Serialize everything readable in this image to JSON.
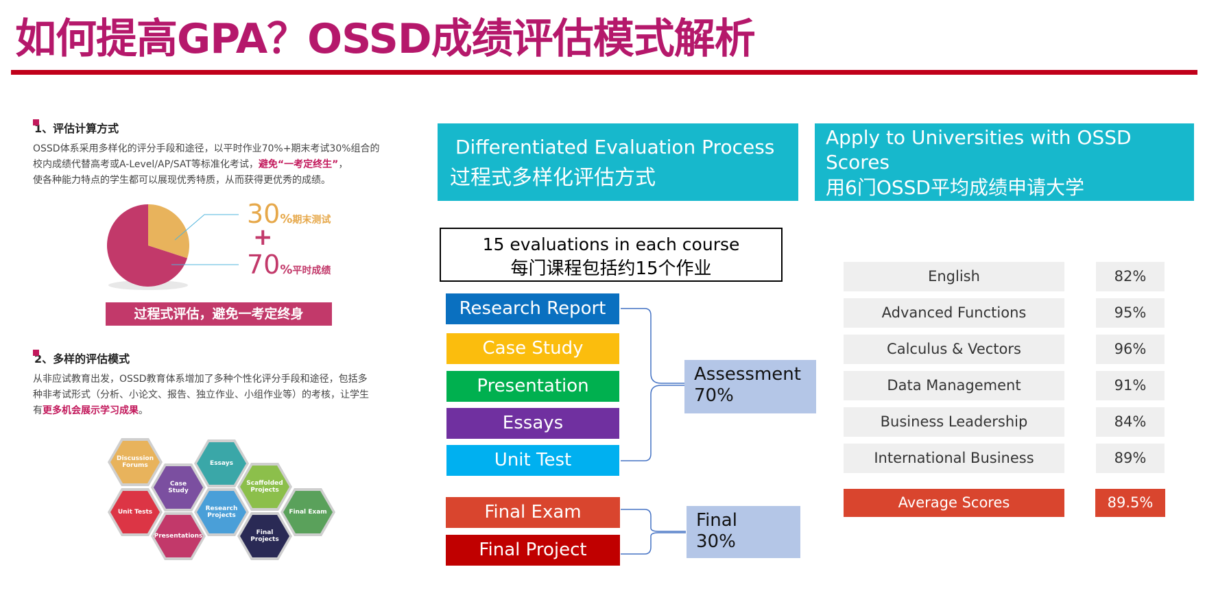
{
  "title": "如何提高GPA？OSSD成绩评估模式解析",
  "left": {
    "section1": {
      "heading": "1、评估计算方式",
      "para_line1": "OSSD体系采用多样化的评分手段和途径，以平时作业70%+期末考试30%组合的",
      "para_line2a": "校内成绩代替高考或A-Level/AP/SAT等标准化考试，",
      "para_line2b": "避免“一考定终生”",
      "para_line2c": "，",
      "para_line3": "使各种能力特点的学生都可以展现优秀特质，从而获得更优秀的成绩。"
    },
    "pie": {
      "final_pct": "30",
      "final_sym": "%",
      "final_label": "期末测试",
      "plus": "+",
      "daily_pct": "70",
      "daily_sym": "%",
      "daily_label": "平时成绩",
      "colors": {
        "final": "#e8b35c",
        "daily": "#c2396a",
        "final_text": "#e6a84a",
        "daily_text": "#c2396a"
      }
    },
    "banner": "过程式评估，避免一考定终身",
    "section2": {
      "heading": "2、多样的评估模式",
      "para_line1": "从非应试教育出发，OSSD教育体系增加了多种个性化评分手段和途径，包括多",
      "para_line2": "种非考试形式（分析、小论文、报告、独立作业、小组作业等）的考核，让学生",
      "para_line3a": "有",
      "para_line3b": "更多机会展示学习成果",
      "para_line3c": "。"
    },
    "hexagons": [
      {
        "label": "Discussion Forums",
        "color": "#e8b35c"
      },
      {
        "label": "Essays",
        "color": "#3aa7a8"
      },
      {
        "label": "Case Study",
        "color": "#7b4fa0"
      },
      {
        "label": "Scaffolded Projects",
        "color": "#8cbf4b"
      },
      {
        "label": "Unit Tests",
        "color": "#dc3545"
      },
      {
        "label": "Research Projects",
        "color": "#4a9fd8"
      },
      {
        "label": "Final Exam",
        "color": "#5aa15b"
      },
      {
        "label": "Presentations",
        "color": "#c2396a"
      },
      {
        "label": "Final Projects",
        "color": "#2a2a55"
      }
    ]
  },
  "middle": {
    "header_en": "Differentiated Evaluation Process",
    "header_cn": "过程式多样化评估方式",
    "box_en": "15 evaluations in each course",
    "box_cn": "每门课程包括约15个作业",
    "evaluations": [
      {
        "label": "Research Report",
        "color": "#0a70c0"
      },
      {
        "label": "Case Study",
        "color": "#fbbd0d"
      },
      {
        "label": "Presentation",
        "color": "#00b04f"
      },
      {
        "label": "Essays",
        "color": "#7030a0"
      },
      {
        "label": "Unit Test",
        "color": "#00b0f0"
      }
    ],
    "finals": [
      {
        "label": "Final Exam",
        "color": "#d9452e"
      },
      {
        "label": "Final Project",
        "color": "#c00000"
      }
    ],
    "assessment_label": "Assessment",
    "assessment_pct": "70%",
    "final_label": "Final",
    "final_pct": "30%"
  },
  "right": {
    "header_en": "Apply to Universities with OSSD Scores",
    "header_cn": "用6门OSSD平均成绩申请大学",
    "subjects": [
      {
        "name": "English",
        "score": "82%"
      },
      {
        "name": "Advanced Functions",
        "score": "95%"
      },
      {
        "name": "Calculus & Vectors",
        "score": "96%"
      },
      {
        "name": "Data Management",
        "score": "91%"
      },
      {
        "name": "Business Leadership",
        "score": "84%"
      },
      {
        "name": "International Business",
        "score": "89%"
      }
    ],
    "average_label": "Average Scores",
    "average_score": "89.5%"
  }
}
